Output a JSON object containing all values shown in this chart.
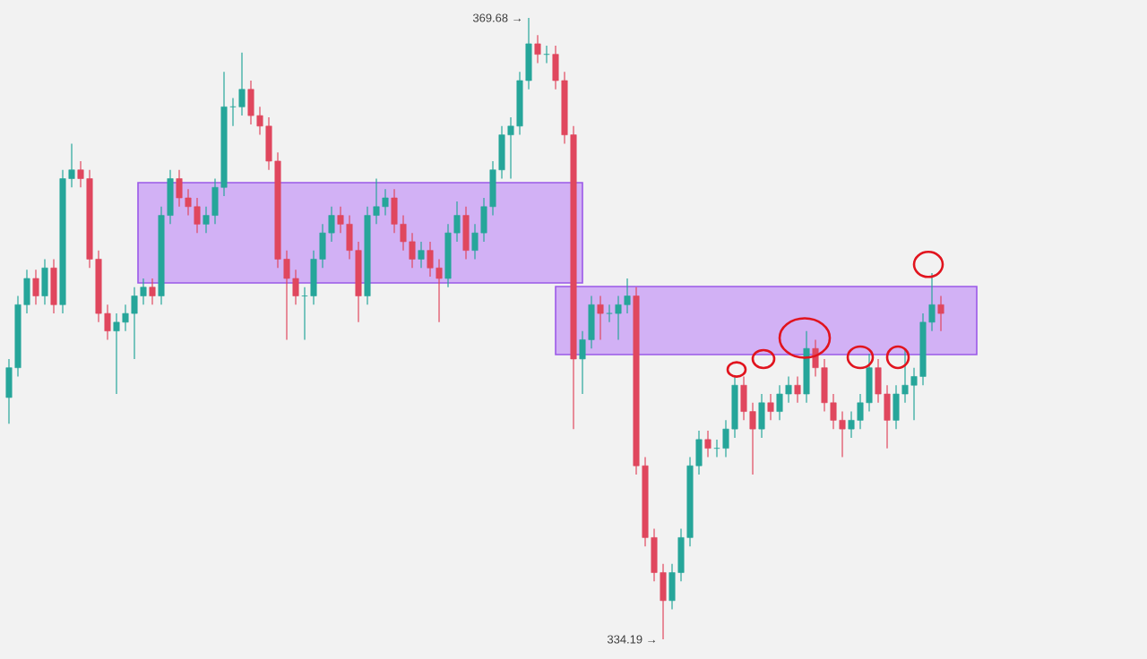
{
  "chart_data": {
    "type": "candlestick",
    "categories": [
      null,
      null,
      null,
      null,
      null,
      null,
      null,
      null,
      null,
      null,
      null,
      null,
      null,
      null,
      null,
      null,
      null,
      null,
      null,
      null,
      null,
      null,
      null,
      null,
      null,
      null,
      null,
      null,
      null,
      null,
      null,
      null,
      null,
      null,
      null,
      null,
      null,
      null,
      null,
      null,
      null,
      null,
      null,
      null,
      null,
      null,
      null,
      null,
      null,
      null,
      null,
      null,
      null,
      null,
      null,
      null,
      null,
      null,
      null,
      null,
      null,
      null,
      null,
      null,
      null,
      null,
      null,
      null,
      null,
      null,
      null,
      null,
      null,
      null,
      null,
      null,
      null,
      null,
      null,
      null,
      null,
      null,
      null,
      null,
      null,
      null,
      null,
      null,
      null,
      null,
      null,
      null,
      null,
      null,
      null,
      null,
      null,
      null,
      null,
      null,
      null,
      null,
      null,
      null,
      null
    ],
    "ohlc": [
      [
        348.0,
        350.2,
        346.5,
        349.7
      ],
      [
        349.7,
        353.8,
        349.2,
        353.3
      ],
      [
        353.3,
        355.3,
        352.8,
        354.8
      ],
      [
        354.8,
        355.3,
        353.3,
        353.8
      ],
      [
        353.8,
        355.9,
        353.3,
        355.4
      ],
      [
        355.4,
        355.9,
        352.8,
        353.3
      ],
      [
        353.3,
        361.0,
        352.8,
        360.5
      ],
      [
        360.5,
        362.5,
        360.0,
        361.0
      ],
      [
        361.0,
        361.5,
        360.0,
        360.5
      ],
      [
        360.5,
        361.0,
        355.4,
        355.9
      ],
      [
        355.9,
        356.4,
        352.3,
        352.8
      ],
      [
        352.8,
        353.3,
        351.3,
        351.8
      ],
      [
        351.8,
        352.8,
        348.2,
        352.3
      ],
      [
        352.3,
        353.3,
        351.8,
        352.8
      ],
      [
        352.8,
        354.3,
        350.2,
        353.8
      ],
      [
        353.8,
        354.8,
        353.3,
        354.3
      ],
      [
        354.3,
        354.8,
        353.3,
        353.8
      ],
      [
        353.8,
        358.9,
        353.3,
        358.4
      ],
      [
        358.4,
        361.0,
        357.9,
        360.5
      ],
      [
        360.5,
        361.0,
        358.9,
        359.4
      ],
      [
        359.4,
        359.9,
        358.4,
        358.9
      ],
      [
        358.9,
        359.4,
        357.4,
        357.9
      ],
      [
        357.9,
        358.9,
        357.4,
        358.4
      ],
      [
        358.4,
        360.5,
        357.9,
        360.0
      ],
      [
        360.0,
        366.6,
        359.5,
        364.6
      ],
      [
        364.6,
        365.1,
        363.5,
        364.6
      ],
      [
        364.6,
        367.7,
        364.1,
        365.6
      ],
      [
        365.6,
        366.1,
        363.6,
        364.1
      ],
      [
        364.1,
        364.6,
        363.0,
        363.5
      ],
      [
        363.5,
        364.0,
        361.0,
        361.5
      ],
      [
        361.5,
        362.0,
        355.4,
        355.9
      ],
      [
        355.9,
        356.4,
        351.3,
        354.8
      ],
      [
        354.8,
        355.3,
        353.3,
        353.8
      ],
      [
        353.8,
        354.3,
        351.3,
        353.8
      ],
      [
        353.8,
        356.4,
        353.3,
        355.9
      ],
      [
        355.9,
        357.9,
        355.4,
        357.4
      ],
      [
        357.4,
        358.9,
        356.9,
        358.4
      ],
      [
        358.4,
        358.9,
        357.4,
        357.9
      ],
      [
        357.9,
        358.4,
        355.9,
        356.4
      ],
      [
        356.4,
        356.9,
        352.3,
        353.8
      ],
      [
        353.8,
        358.9,
        353.3,
        358.4
      ],
      [
        358.4,
        360.5,
        357.9,
        358.9
      ],
      [
        358.9,
        359.9,
        358.4,
        359.4
      ],
      [
        359.4,
        359.9,
        357.4,
        357.9
      ],
      [
        357.9,
        358.4,
        356.4,
        356.9
      ],
      [
        356.9,
        357.4,
        355.4,
        355.9
      ],
      [
        355.9,
        356.9,
        355.4,
        356.4
      ],
      [
        356.4,
        356.9,
        354.9,
        355.4
      ],
      [
        355.4,
        355.9,
        352.3,
        354.8
      ],
      [
        354.8,
        357.9,
        354.3,
        357.4
      ],
      [
        357.4,
        359.2,
        356.9,
        358.4
      ],
      [
        358.4,
        358.9,
        355.9,
        356.4
      ],
      [
        356.4,
        357.9,
        355.9,
        357.4
      ],
      [
        357.4,
        359.4,
        356.9,
        358.9
      ],
      [
        358.9,
        361.5,
        358.4,
        361.0
      ],
      [
        361.0,
        363.5,
        360.5,
        363.0
      ],
      [
        363.0,
        364.0,
        360.5,
        363.5
      ],
      [
        363.5,
        366.6,
        363.0,
        366.1
      ],
      [
        366.1,
        369.68,
        365.6,
        368.2
      ],
      [
        368.2,
        368.7,
        367.1,
        367.6
      ],
      [
        367.6,
        368.1,
        367.1,
        367.6
      ],
      [
        367.6,
        368.1,
        365.6,
        366.1
      ],
      [
        366.1,
        366.6,
        362.5,
        363.0
      ],
      [
        363.0,
        363.5,
        346.2,
        350.2
      ],
      [
        350.2,
        351.8,
        348.2,
        351.3
      ],
      [
        351.3,
        353.8,
        350.8,
        353.3
      ],
      [
        353.3,
        353.8,
        351.3,
        352.8
      ],
      [
        352.8,
        353.3,
        352.3,
        352.8
      ],
      [
        352.8,
        353.8,
        351.3,
        353.3
      ],
      [
        353.3,
        354.8,
        352.8,
        353.8
      ],
      [
        353.8,
        354.3,
        343.6,
        344.1
      ],
      [
        344.1,
        344.6,
        339.5,
        340.0
      ],
      [
        340.0,
        340.5,
        337.5,
        338.0
      ],
      [
        338.0,
        338.5,
        334.19,
        336.4
      ],
      [
        336.4,
        338.5,
        335.9,
        338.0
      ],
      [
        338.0,
        340.5,
        337.5,
        340.0
      ],
      [
        340.0,
        344.6,
        339.5,
        344.1
      ],
      [
        344.1,
        346.1,
        343.6,
        345.6
      ],
      [
        345.6,
        346.1,
        344.6,
        345.1
      ],
      [
        345.1,
        345.6,
        344.6,
        345.1
      ],
      [
        345.1,
        346.7,
        344.6,
        346.2
      ],
      [
        346.2,
        349.2,
        345.7,
        348.7
      ],
      [
        348.7,
        349.2,
        346.7,
        347.2
      ],
      [
        347.2,
        347.7,
        343.6,
        346.2
      ],
      [
        346.2,
        348.2,
        345.7,
        347.7
      ],
      [
        347.7,
        348.2,
        346.7,
        347.2
      ],
      [
        347.2,
        348.7,
        346.7,
        348.2
      ],
      [
        348.2,
        349.2,
        347.7,
        348.7
      ],
      [
        348.7,
        349.2,
        347.7,
        348.2
      ],
      [
        348.2,
        351.8,
        347.7,
        350.8
      ],
      [
        350.8,
        351.3,
        349.2,
        349.7
      ],
      [
        349.7,
        350.2,
        347.2,
        347.7
      ],
      [
        347.7,
        348.2,
        346.2,
        346.7
      ],
      [
        346.7,
        347.2,
        344.6,
        346.2
      ],
      [
        346.2,
        347.2,
        345.7,
        346.7
      ],
      [
        346.7,
        348.2,
        346.2,
        347.7
      ],
      [
        347.7,
        350.5,
        347.2,
        349.7
      ],
      [
        349.7,
        350.2,
        347.7,
        348.2
      ],
      [
        348.2,
        348.7,
        345.1,
        346.7
      ],
      [
        346.7,
        348.7,
        346.2,
        348.2
      ],
      [
        348.2,
        350.8,
        347.7,
        348.7
      ],
      [
        348.7,
        349.7,
        346.7,
        349.2
      ],
      [
        349.2,
        352.8,
        348.7,
        352.3
      ],
      [
        352.3,
        355.1,
        351.8,
        353.3
      ],
      [
        353.3,
        353.8,
        351.8,
        352.8
      ]
    ],
    "bands": [
      {
        "axis": "y",
        "from": 354.54,
        "to": 360.27,
        "color": "#d2b1f5"
      },
      {
        "axis": "y",
        "from": 350.45,
        "to": 354.34,
        "color": "#d2b1f5"
      }
    ],
    "annotations": [
      "369.68 →",
      "334.19 →"
    ]
  }
}
